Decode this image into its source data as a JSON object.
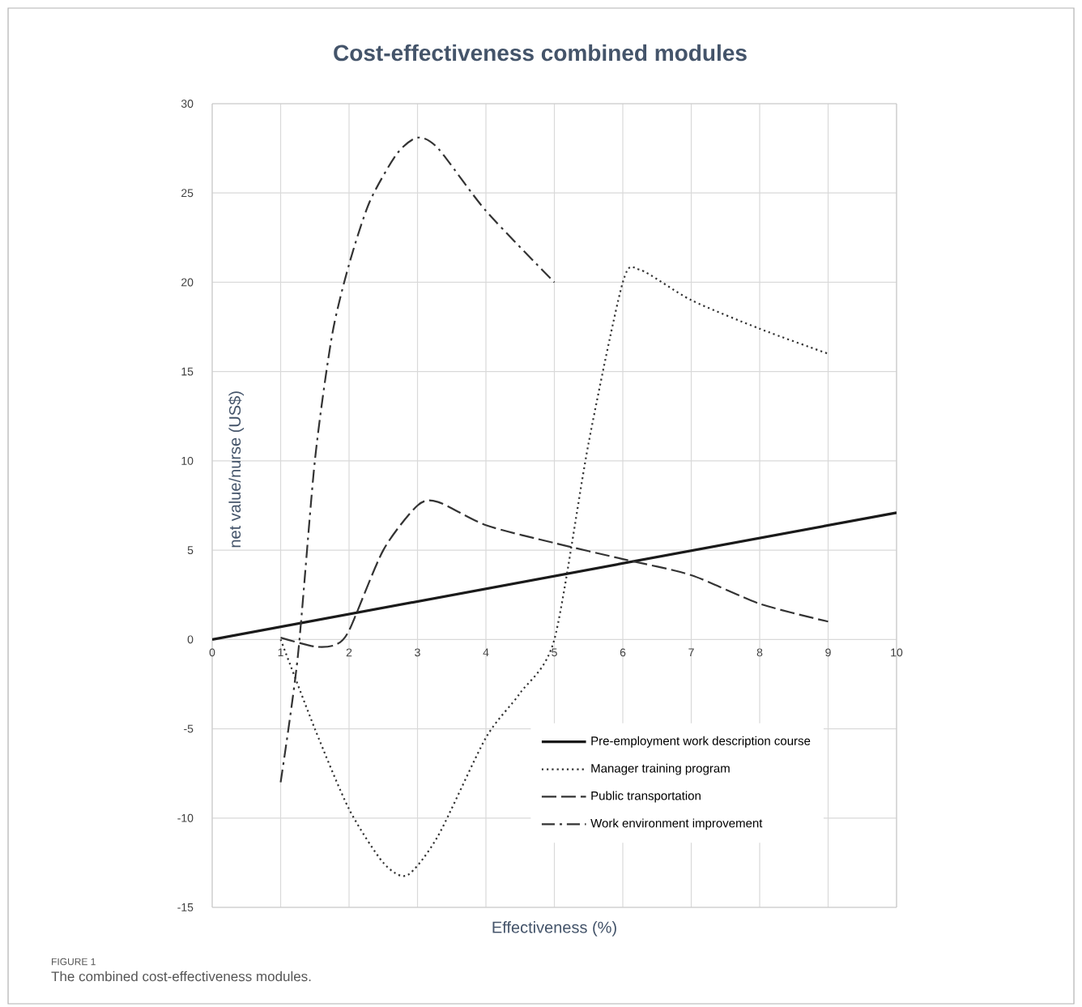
{
  "chart_data": {
    "type": "line",
    "title": "Cost-effectiveness combined modules",
    "xlabel": "Effectiveness (%)",
    "ylabel": "net value/nurse (US$)",
    "xlim": [
      0,
      10
    ],
    "ylim": [
      -15,
      30
    ],
    "xticks": [
      0,
      1,
      2,
      3,
      4,
      5,
      6,
      7,
      8,
      9,
      10
    ],
    "yticks": [
      -15,
      -10,
      -5,
      0,
      5,
      10,
      15,
      20,
      25,
      30
    ],
    "grid": true,
    "legend": "bottom right",
    "series": [
      {
        "name": "Pre-employment work description course",
        "color": "#1a1a1a",
        "line_style": "solid",
        "x": [
          0,
          10
        ],
        "values": [
          0,
          7.1
        ]
      },
      {
        "name": "Manager training program",
        "color": "#333333",
        "line_style": "dotted",
        "x": [
          1,
          1.5,
          2,
          2.5,
          2.85,
          3.3,
          4,
          4.5,
          5,
          5.5,
          6,
          6.25,
          7,
          8,
          9
        ],
        "values": [
          0,
          -5,
          -9.5,
          -12.5,
          -13.2,
          -11,
          -5.5,
          -3,
          0,
          11,
          20,
          20.7,
          19,
          17.4,
          16
        ]
      },
      {
        "name": "Public transportation",
        "color": "#333333",
        "line_style": "dashed",
        "x": [
          1,
          1.5,
          1.8,
          2,
          2.5,
          3,
          3.3,
          4,
          5,
          6,
          7,
          8,
          9
        ],
        "values": [
          0.1,
          -0.4,
          -0.3,
          0.5,
          5,
          7.5,
          7.7,
          6.4,
          5.4,
          4.5,
          3.6,
          2,
          1
        ]
      },
      {
        "name": "Work environment improvement",
        "color": "#333333",
        "line_style": "dashdot",
        "x": [
          1,
          1.25,
          1.5,
          1.75,
          2,
          2.3,
          2.7,
          3,
          3.3,
          4,
          5
        ],
        "values": [
          -8,
          -1,
          10,
          17,
          21,
          24.5,
          27.2,
          28.1,
          27.5,
          24,
          20
        ]
      }
    ],
    "annotations": [
      "FIGURE 1",
      "The combined cost-effectiveness modules."
    ]
  }
}
